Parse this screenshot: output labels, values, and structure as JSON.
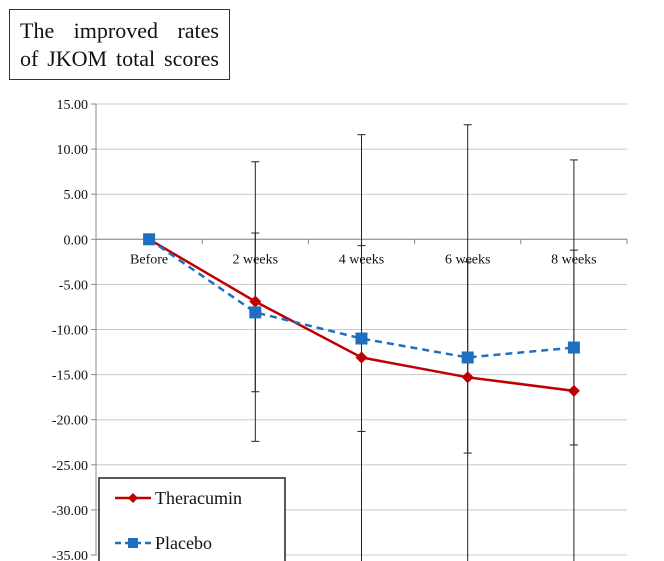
{
  "chart_data": {
    "type": "line",
    "title_lines": [
      "The improved rates",
      "of JKOM total scores"
    ],
    "categories": [
      "Before",
      "2 weeks",
      "4 weeks",
      "6 weeks",
      "8 weeks"
    ],
    "y_ticks": [
      "15.00",
      "10.00",
      "5.00",
      "0.00",
      "-5.00",
      "-10.00",
      "-15.00",
      "-20.00",
      "-25.00",
      "-30.00",
      "-35.00"
    ],
    "ylim": [
      -35,
      15
    ],
    "grid": true,
    "legend_placement": "bottom-left",
    "series": [
      {
        "name": "Theracumin",
        "color": "#c00000",
        "marker": "diamond",
        "line": "solid",
        "values": [
          0,
          -6.9,
          -13.1,
          -15.3,
          -16.8
        ],
        "error": [
          0,
          15.5,
          24.7,
          28.0,
          25.6
        ]
      },
      {
        "name": "Placebo",
        "color": "#1f6fc0",
        "marker": "square",
        "line": "dashed",
        "values": [
          0,
          -8.1,
          -11.0,
          -13.1,
          -12.0
        ],
        "error": [
          0,
          8.8,
          10.3,
          10.6,
          10.8
        ]
      }
    ]
  }
}
